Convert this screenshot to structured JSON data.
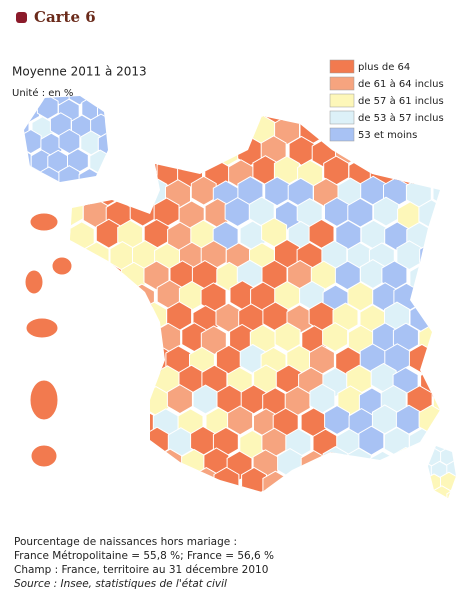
{
  "header": {
    "title": "Carte 6"
  },
  "subtitle": "Moyenne 2011 à 2013",
  "unit": "Unité : en %",
  "legend": [
    {
      "label": "plus de 64",
      "color": "#f27a4f"
    },
    {
      "label": "de 61 à 64 inclus",
      "color": "#f6a47f"
    },
    {
      "label": "de 57 à 61 inclus",
      "color": "#fdf7b9"
    },
    {
      "label": "de 53 à 57 inclus",
      "color": "#ddf1f8"
    },
    {
      "label": "53 et moins",
      "color": "#a8c2f4"
    }
  ],
  "notes": [
    "Pourcentage de naissances hors mariage :",
    "France Métropolitaine = 55,8 %; France = 56,6 %",
    "Champ : France, territoire au 31 décembre 2010",
    "Source : Insee, statistiques de l'état civil"
  ]
}
